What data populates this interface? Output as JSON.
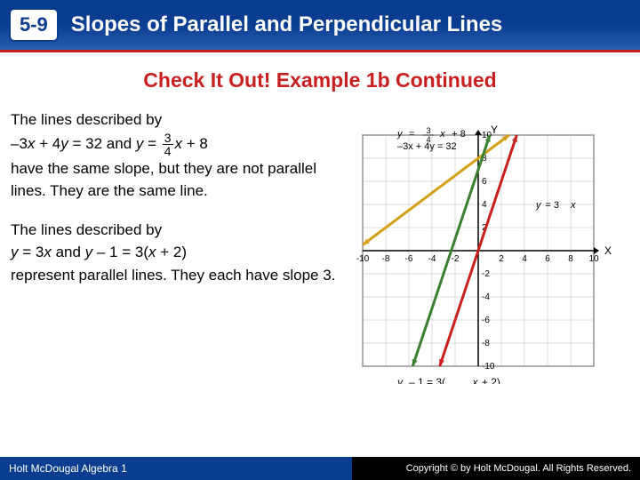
{
  "header": {
    "section_number": "5-9",
    "title": "Slopes of Parallel and Perpendicular Lines"
  },
  "example_title": "Check It Out! Example 1b Continued",
  "body": {
    "para1_a": "The lines described by",
    "para1_eq1_a": "–3",
    "para1_eq1_b": " + 4",
    "para1_eq1_c": " = 32",
    "para1_and": " and ",
    "para1_eq2_a": " = ",
    "para1_eq2_b": " + 8",
    "para1_c": "have the same slope, but they are not parallel lines. They are the same line.",
    "para2_a": "The lines described by",
    "para2_eq1": " = 3",
    "para2_eq1b": " and ",
    "para2_eq2": " – 1 = 3(",
    "para2_eq2b": " + 2)",
    "para2_c": "represent parallel lines. They each have slope 3.",
    "frac_num": "3",
    "frac_den": "4"
  },
  "graph": {
    "xmin": -10,
    "xmax": 10,
    "ymin": -10,
    "ymax": 10,
    "tick_step": 2,
    "xlabel": "X",
    "ylabel": "Y",
    "grid_color": "#b8b8b8",
    "axis_color": "#000000",
    "bg_color": "#ffffff",
    "label_fontsize": 10,
    "lines": [
      {
        "name": "line-same",
        "color": "#d4a017",
        "width": 3,
        "points": [
          [
            -10,
            0.5
          ],
          [
            2.67,
            10
          ]
        ],
        "label_eq1_a": "y",
        "label_eq1_b": " = ",
        "label_eq1_num": "3",
        "label_eq1_den": "4",
        "label_eq1_c": " x + 8",
        "label_eq2": "–3x + 4y = 32"
      },
      {
        "name": "line-y3x",
        "color": "#c82020",
        "width": 3,
        "points": [
          [
            -3.33,
            -10
          ],
          [
            3.33,
            10
          ]
        ],
        "label": "y = 3x"
      },
      {
        "name": "line-y1-3x2",
        "color": "#3a7f2f",
        "width": 3,
        "points": [
          [
            -5.67,
            -10
          ],
          [
            1,
            10
          ]
        ],
        "label": "y – 1 = 3(x + 2)"
      }
    ]
  },
  "footer": {
    "left": "Holt McDougal Algebra 1",
    "right": "Copyright © by Holt McDougal. All Rights Reserved."
  }
}
